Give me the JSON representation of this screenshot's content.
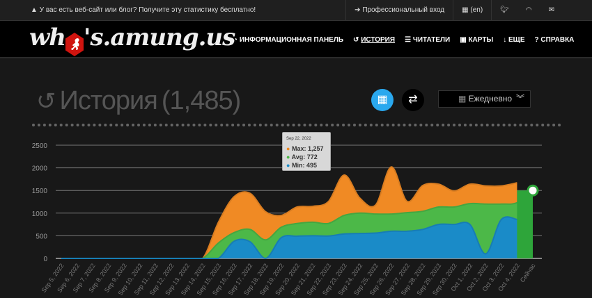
{
  "topbar": {
    "promo": "У вас есть веб-сайт или блог? Получите эту статистику бесплатно!",
    "login": "Профессиональный вход",
    "lang": "(en)"
  },
  "logo": {
    "text_left": "wh",
    "text_right": "'s.amung.us"
  },
  "menu": [
    {
      "label": "ИНФОРМАЦИОННАЯ ПАНЕЛЬ",
      "icon": "dashboard-icon"
    },
    {
      "label": "ИСТОРИЯ",
      "icon": "history-icon"
    },
    {
      "label": "ЧИТАТЕЛИ",
      "icon": "list-icon"
    },
    {
      "label": "КАРТЫ",
      "icon": "map-icon"
    },
    {
      "label": "ЕЩЕ",
      "icon": "arrow-down-icon"
    },
    {
      "label": "СПРАВКА",
      "icon": "help-icon"
    }
  ],
  "page": {
    "title": "История",
    "count": "(1,485)",
    "interval": "Ежедневно"
  },
  "tooltip": {
    "date": "Sep 22, 2022",
    "max_label": "Max:",
    "max": "1,257",
    "avg_label": "Avg:",
    "avg": "772",
    "min_label": "Min:",
    "min": "495"
  },
  "chart_data": {
    "type": "area",
    "categories": [
      "Sep 5, 2022",
      "Sep 6, 2022",
      "Sep 7, 2022",
      "Sep 8, 2022",
      "Sep 9, 2022",
      "Sep 10, 2022",
      "Sep 11, 2022",
      "Sep 12, 2022",
      "Sep 13, 2022",
      "Sep 14, 2022",
      "Sep 15, 2022",
      "Sep 16, 2022",
      "Sep 17, 2022",
      "Sep 18, 2022",
      "Sep 19, 2022",
      "Sep 20, 2022",
      "Sep 21, 2022",
      "Sep 22, 2022",
      "Sep 23, 2022",
      "Sep 24, 2022",
      "Sep 25, 2022",
      "Sep 26, 2022",
      "Sep 27, 2022",
      "Sep 28, 2022",
      "Sep 29, 2022",
      "Sep 30, 2022",
      "Oct 1, 2022",
      "Oct 2, 2022",
      "Oct 3, 2022",
      "Oct 4, 2022",
      "Сейчас"
    ],
    "series": [
      {
        "name": "Max",
        "color": "#f08a24",
        "values": [
          0,
          0,
          0,
          0,
          0,
          0,
          0,
          0,
          0,
          0,
          800,
          1365,
          1440,
          1030,
          950,
          1135,
          1150,
          1257,
          1840,
          1330,
          1180,
          2020,
          1260,
          1610,
          1640,
          1490,
          1640,
          1600,
          1600,
          1670,
          null
        ]
      },
      {
        "name": "Avg",
        "color": "#4cb848",
        "values": [
          0,
          0,
          0,
          0,
          0,
          0,
          0,
          0,
          0,
          0,
          340,
          570,
          640,
          410,
          690,
          770,
          800,
          772,
          950,
          1000,
          980,
          980,
          1010,
          1040,
          1135,
          1135,
          1210,
          1200,
          1200,
          1230,
          1500
        ]
      },
      {
        "name": "Min",
        "color": "#1a8bc8",
        "values": [
          0,
          0,
          0,
          0,
          0,
          0,
          0,
          0,
          0,
          0,
          0,
          380,
          370,
          0,
          460,
          490,
          500,
          495,
          540,
          550,
          560,
          600,
          600,
          640,
          750,
          750,
          750,
          100,
          860,
          860,
          null
        ]
      }
    ],
    "yticks": [
      0,
      500,
      1000,
      1500,
      2000,
      2500
    ],
    "ylim": [
      0,
      2500
    ],
    "grid": true
  }
}
